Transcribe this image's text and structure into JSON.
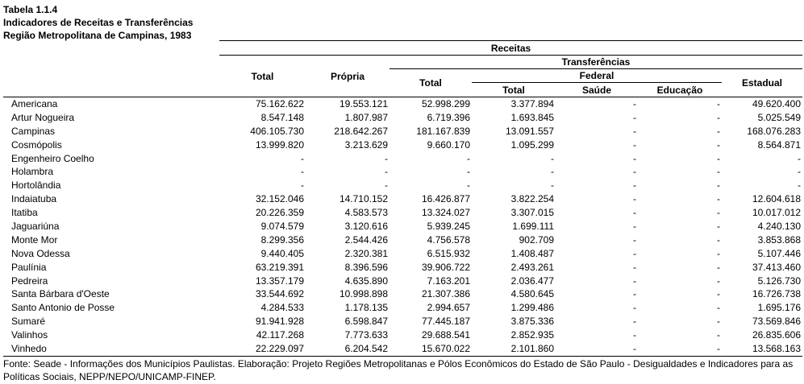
{
  "title": {
    "line1": "Tabela 1.1.4",
    "line2": "Indicadores de Receitas e Transferências",
    "line3": "Região Metropolitana de Campinas, 1983"
  },
  "headers": {
    "receitas": "Receitas",
    "transferencias": "Transferências",
    "federal": "Federal",
    "total": "Total",
    "propria": "Própria",
    "transf_total": "Total",
    "federal_total": "Total",
    "saude": "Saúde",
    "educacao": "Educação",
    "estadual": "Estadual"
  },
  "rows": [
    {
      "name": "Americana",
      "total": "75.162.622",
      "propria": "19.553.121",
      "transf_total": "52.998.299",
      "fed_total": "3.377.894",
      "saude": "-",
      "educacao": "-",
      "estadual": "49.620.400"
    },
    {
      "name": "Artur Nogueira",
      "total": "8.547.148",
      "propria": "1.807.987",
      "transf_total": "6.719.396",
      "fed_total": "1.693.845",
      "saude": "-",
      "educacao": "-",
      "estadual": "5.025.549"
    },
    {
      "name": "Campinas",
      "total": "406.105.730",
      "propria": "218.642.267",
      "transf_total": "181.167.839",
      "fed_total": "13.091.557",
      "saude": "-",
      "educacao": "-",
      "estadual": "168.076.283"
    },
    {
      "name": "Cosmópolis",
      "total": "13.999.820",
      "propria": "3.213.629",
      "transf_total": "9.660.170",
      "fed_total": "1.095.299",
      "saude": "-",
      "educacao": "-",
      "estadual": "8.564.871"
    },
    {
      "name": "Engenheiro Coelho",
      "total": "-",
      "propria": "-",
      "transf_total": "-",
      "fed_total": "-",
      "saude": "-",
      "educacao": "-",
      "estadual": "-"
    },
    {
      "name": "Holambra",
      "total": "-",
      "propria": "-",
      "transf_total": "-",
      "fed_total": "-",
      "saude": "-",
      "educacao": "-",
      "estadual": "-"
    },
    {
      "name": "Hortolândia",
      "total": "-",
      "propria": "-",
      "transf_total": "-",
      "fed_total": "-",
      "saude": "-",
      "educacao": "-",
      "estadual": "-"
    },
    {
      "name": "Indaiatuba",
      "total": "32.152.046",
      "propria": "14.710.152",
      "transf_total": "16.426.877",
      "fed_total": "3.822.254",
      "saude": "-",
      "educacao": "-",
      "estadual": "12.604.618"
    },
    {
      "name": "Itatiba",
      "total": "20.226.359",
      "propria": "4.583.573",
      "transf_total": "13.324.027",
      "fed_total": "3.307.015",
      "saude": "-",
      "educacao": "-",
      "estadual": "10.017.012"
    },
    {
      "name": "Jaguariúna",
      "total": "9.074.579",
      "propria": "3.120.616",
      "transf_total": "5.939.245",
      "fed_total": "1.699.111",
      "saude": "-",
      "educacao": "-",
      "estadual": "4.240.130"
    },
    {
      "name": "Monte Mor",
      "total": "8.299.356",
      "propria": "2.544.426",
      "transf_total": "4.756.578",
      "fed_total": "902.709",
      "saude": "-",
      "educacao": "-",
      "estadual": "3.853.868"
    },
    {
      "name": "Nova Odessa",
      "total": "9.440.405",
      "propria": "2.320.381",
      "transf_total": "6.515.932",
      "fed_total": "1.408.487",
      "saude": "-",
      "educacao": "-",
      "estadual": "5.107.446"
    },
    {
      "name": "Paulínia",
      "total": "63.219.391",
      "propria": "8.396.596",
      "transf_total": "39.906.722",
      "fed_total": "2.493.261",
      "saude": "-",
      "educacao": "-",
      "estadual": "37.413.460"
    },
    {
      "name": "Pedreira",
      "total": "13.357.179",
      "propria": "4.635.890",
      "transf_total": "7.163.201",
      "fed_total": "2.036.477",
      "saude": "-",
      "educacao": "-",
      "estadual": "5.126.730"
    },
    {
      "name": "Santa Bárbara d'Oeste",
      "total": "33.544.692",
      "propria": "10.998.898",
      "transf_total": "21.307.386",
      "fed_total": "4.580.645",
      "saude": "-",
      "educacao": "-",
      "estadual": "16.726.738"
    },
    {
      "name": "Santo Antonio de Posse",
      "total": "4.284.533",
      "propria": "1.178.135",
      "transf_total": "2.994.657",
      "fed_total": "1.299.486",
      "saude": "-",
      "educacao": "-",
      "estadual": "1.695.176"
    },
    {
      "name": "Sumaré",
      "total": "91.941.928",
      "propria": "6.598.847",
      "transf_total": "77.445.187",
      "fed_total": "3.875.336",
      "saude": "-",
      "educacao": "-",
      "estadual": "73.569.846"
    },
    {
      "name": "Valinhos",
      "total": "42.117.268",
      "propria": "7.773.633",
      "transf_total": "29.688.541",
      "fed_total": "2.852.935",
      "saude": "-",
      "educacao": "-",
      "estadual": "26.835.606"
    },
    {
      "name": "Vinhedo",
      "total": "22.229.097",
      "propria": "6.204.542",
      "transf_total": "15.670.022",
      "fed_total": "2.101.860",
      "saude": "-",
      "educacao": "-",
      "estadual": "13.568.163"
    }
  ],
  "source": "Fonte: Seade - Informações dos Municípios Paulistas. Elaboração: Projeto Regiões Metropolitanas e Pólos Econômicos do Estado de São Paulo - Desigualdades e Indicadores para as Políticas Sociais, NEPP/NEPO/UNICAMP-FINEP."
}
